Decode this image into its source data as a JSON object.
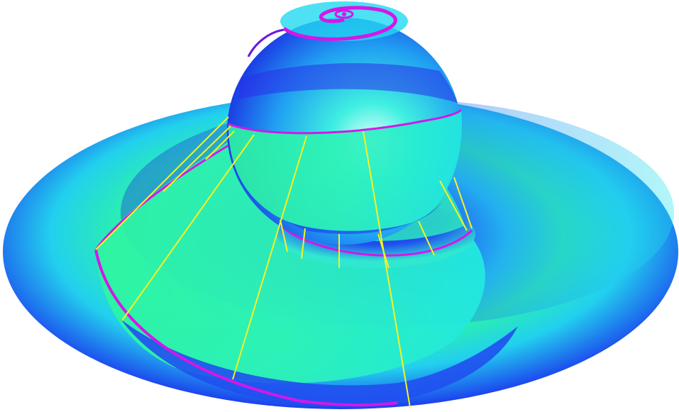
{
  "scene": {
    "background": "#ffffff",
    "palette": {
      "deep_blue": "#1a1ae6",
      "blue": "#2a5cf0",
      "cyan": "#22d6f2",
      "green": "#2cf5a8",
      "magenta": "#d417e8",
      "purple": "#6a18e0",
      "yellow": "#f7f320"
    },
    "objects": [
      "disk-surface",
      "sphere",
      "spiral-band",
      "field-lines"
    ]
  }
}
